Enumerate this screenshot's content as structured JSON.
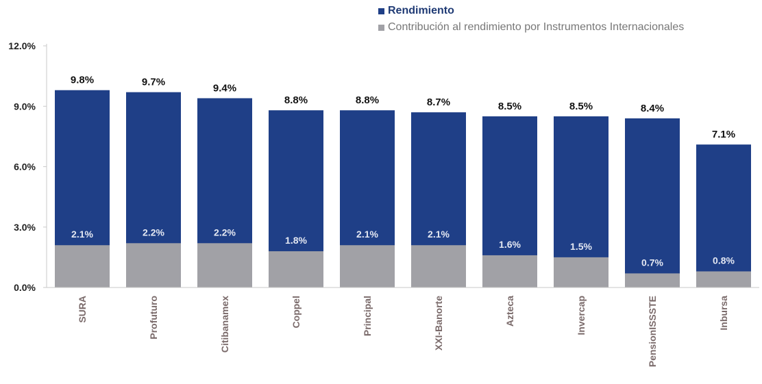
{
  "chart_data": {
    "type": "bar",
    "stacked": true,
    "categories": [
      "SURA",
      "Profuturo",
      "Citibanamex",
      "Coppel",
      "Principal",
      "XXI-Banorte",
      "Azteca",
      "Invercap",
      "PensionISSSTE",
      "Inbursa"
    ],
    "series": [
      {
        "name": "Rendimiento",
        "color": "#1f3f87",
        "values": [
          9.8,
          9.7,
          9.4,
          8.8,
          8.8,
          8.7,
          8.5,
          8.5,
          8.4,
          7.1
        ],
        "labels": [
          "9.8%",
          "9.7%",
          "9.4%",
          "8.8%",
          "8.8%",
          "8.7%",
          "8.5%",
          "8.5%",
          "8.4%",
          "7.1%"
        ]
      },
      {
        "name": "Contribución al rendimiento por Instrumentos Internacionales",
        "color": "#a1a1a6",
        "values": [
          2.1,
          2.2,
          2.2,
          1.8,
          2.1,
          2.1,
          1.6,
          1.5,
          0.7,
          0.8
        ],
        "labels": [
          "2.1%",
          "2.2%",
          "2.2%",
          "1.8%",
          "2.1%",
          "2.1%",
          "1.6%",
          "1.5%",
          "0.7%",
          "0.8%"
        ]
      }
    ],
    "ylim": [
      0,
      12
    ],
    "yticks": [
      0,
      3,
      6,
      9,
      12
    ],
    "ytick_labels": [
      "0.0%",
      "3.0%",
      "6.0%",
      "9.0%",
      "12.0%"
    ],
    "grid": false,
    "legend_position": "top-right",
    "title": "",
    "xlabel": "",
    "ylabel": ""
  }
}
